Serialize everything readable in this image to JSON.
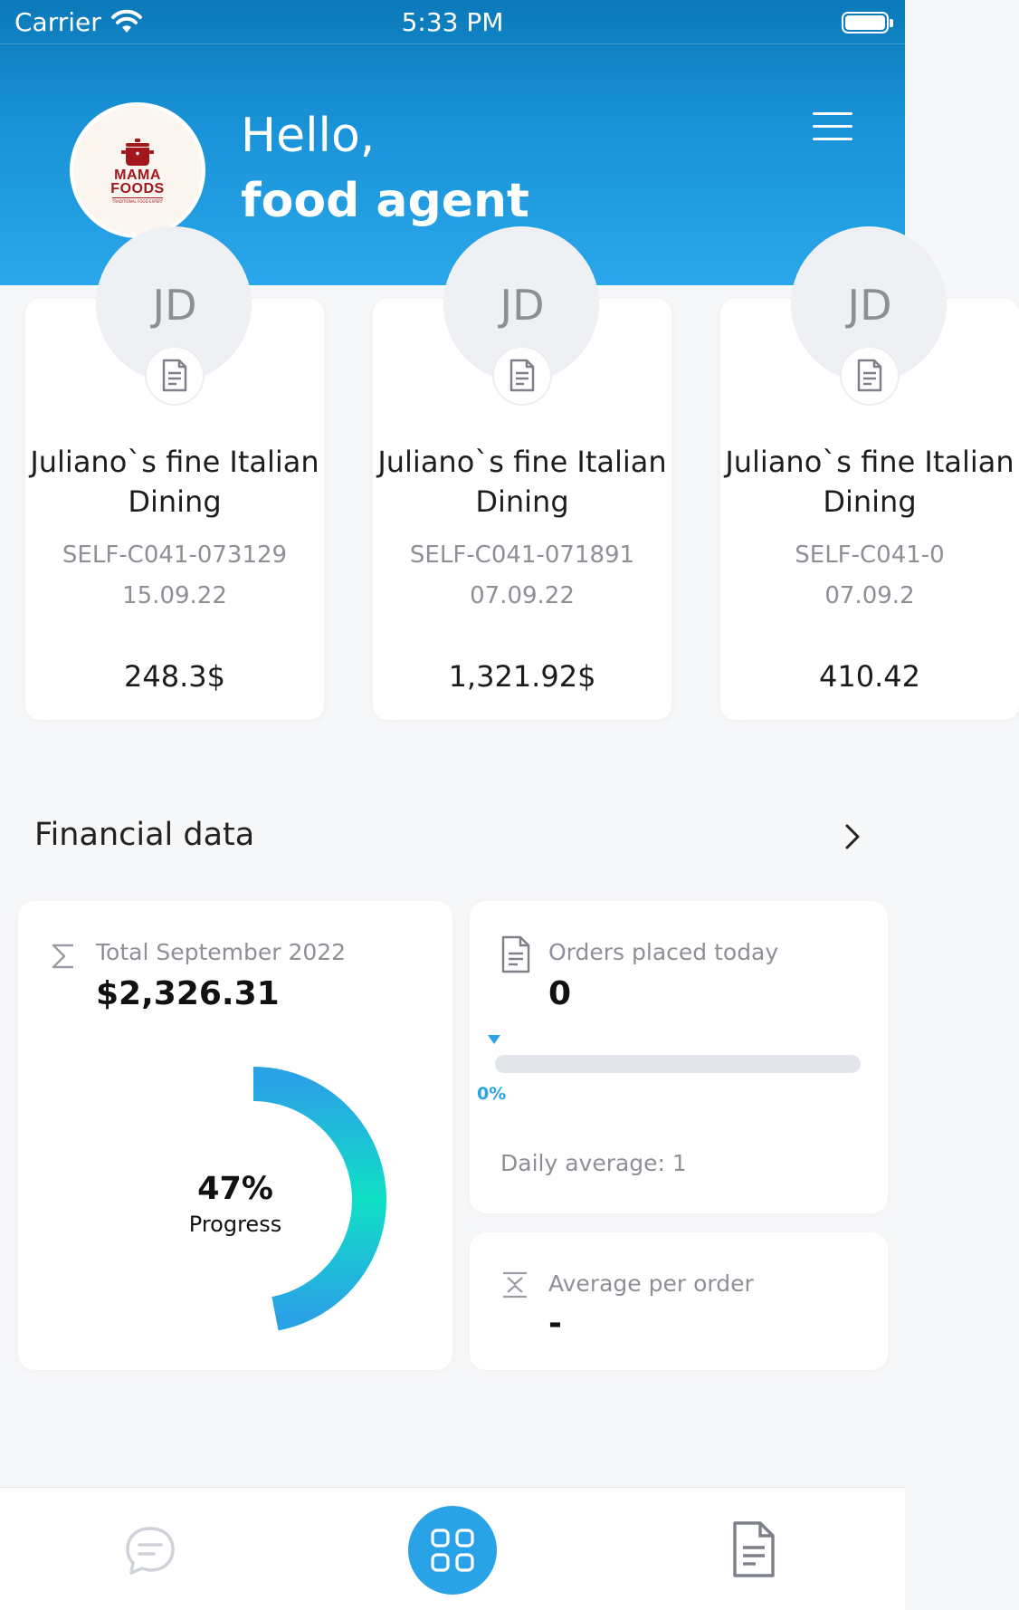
{
  "status_bar": {
    "carrier": "Carrier",
    "time": "5:33 PM"
  },
  "header": {
    "logo_line1": "MAMA",
    "logo_line2": "FOODS",
    "logo_sub": "TRADITIONAL FOOD EXPERT",
    "greeting": "Hello,",
    "user": "food agent"
  },
  "orders": [
    {
      "initials": "JD",
      "name": "Juliano`s fine Italian Dining",
      "code": "SELF-C041-073129",
      "date": "15.09.22",
      "amount": "248.3$"
    },
    {
      "initials": "JD",
      "name": "Juliano`s fine Italian Dining",
      "code": "SELF-C041-071891",
      "date": "07.09.22",
      "amount": "1,321.92$"
    },
    {
      "initials": "JD",
      "name": "Juliano`s fine Italian Dining",
      "code": "SELF-C041-0",
      "date": "07.09.2",
      "amount": "410.42"
    }
  ],
  "financial": {
    "title": "Financial data",
    "total": {
      "label": "Total September 2022",
      "value": "$2,326.31",
      "progress_pct": "47%",
      "progress_label": "Progress",
      "progress_value": 0.47
    },
    "orders_today": {
      "label": "Orders placed today",
      "value": "0",
      "bar_pct": "0%",
      "bar_value": 0,
      "daily_avg": "Daily average: 1"
    },
    "avg_order": {
      "label": "Average per order",
      "value": "-"
    }
  },
  "colors": {
    "primary": "#2aa3e6",
    "header_top": "#0b79b9",
    "header_bottom": "#2aa6ea",
    "gauge_start": "#2aa3e6",
    "gauge_end": "#0fe0c4",
    "logo": "#a3171c"
  },
  "icons": {
    "menu": "hamburger-icon",
    "doc": "document-icon",
    "sigma": "sigma-icon",
    "avg": "average-icon",
    "chat": "chat-icon",
    "home": "grid-icon",
    "docs": "document-icon"
  }
}
